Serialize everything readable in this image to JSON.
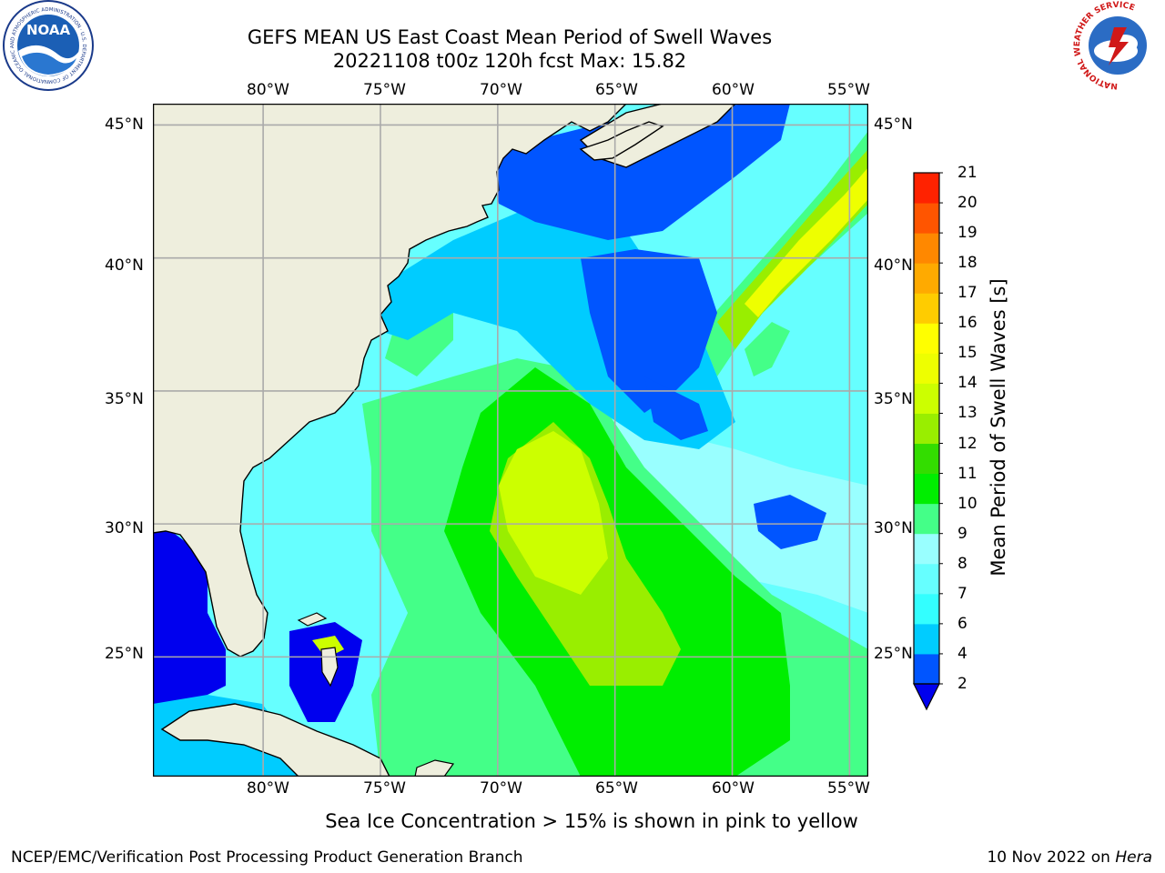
{
  "title": {
    "line1": "GEFS MEAN US East Coast Mean Period of Swell Waves",
    "line2": "20221108 t00z 120h fcst   Max: 15.82"
  },
  "logos": {
    "noaa_text": "NOAA",
    "noaa_ring": "NATIONAL OCEANIC AND ATMOSPHERIC ADMINISTRATION · U.S. DEPARTMENT OF COMMERCE",
    "nws_ring": "NATIONAL WEATHER SERVICE"
  },
  "map": {
    "lon_labels": [
      "80°W",
      "75°W",
      "70°W",
      "65°W",
      "60°W",
      "55°W"
    ],
    "lat_labels": [
      "45°N",
      "40°N",
      "35°N",
      "30°N",
      "25°N"
    ],
    "extent": {
      "lon_min": -84.7,
      "lon_max": -54.2,
      "lat_min": 20.5,
      "lat_max": 45.8
    },
    "grid": true,
    "max_value": 15.82
  },
  "colorbar": {
    "label": "Mean Period of Swell Waves [s]",
    "ticks": [
      "2",
      "4",
      "6",
      "7",
      "8",
      "9",
      "10",
      "11",
      "12",
      "13",
      "14",
      "15",
      "16",
      "17",
      "18",
      "19",
      "20",
      "21"
    ],
    "colors": [
      "#0055ff",
      "#00ccff",
      "#33ffff",
      "#66ffff",
      "#99ffff",
      "#44ff88",
      "#00ee00",
      "#33dd00",
      "#99ee00",
      "#ccff00",
      "#eeff00",
      "#ffff00",
      "#ffcc00",
      "#ffaa00",
      "#ff8800",
      "#ff5500",
      "#ff2200"
    ],
    "under_color": "#0000ee"
  },
  "note": "Sea Ice Concentration > 15% is shown in pink to yellow",
  "footer": {
    "left": "NCEP/EMC/Verification Post Processing Product Generation Branch",
    "date": "10 Nov 2022 on ",
    "machine": "Hera"
  }
}
